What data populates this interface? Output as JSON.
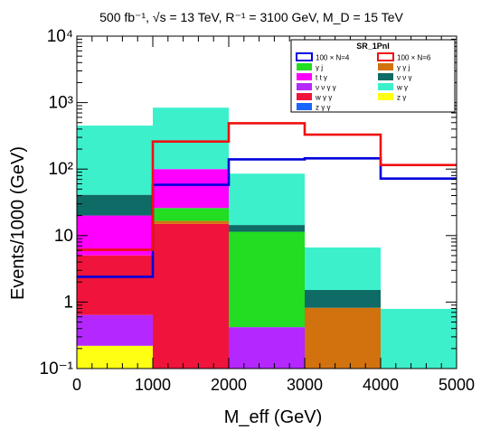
{
  "chart_data": {
    "type": "bar",
    "title": "500 fb⁻¹, √s = 13 TeV, R⁻¹ = 3100 GeV, M_D = 15 TeV",
    "xlabel": "M_eff (GeV)",
    "ylabel": "Events/1000 (GeV)",
    "x_bin_edges": [
      0,
      1000,
      2000,
      3000,
      4000,
      5000
    ],
    "x_ticks": [
      "0",
      "1000",
      "2000",
      "3000",
      "4000",
      "5000"
    ],
    "y_scale": "log",
    "ylim": [
      0.1,
      10000
    ],
    "y_ticks": [
      "10⁻¹",
      "1",
      "10",
      "10²",
      "10³",
      "10⁴"
    ],
    "legend": {
      "title": "SR_1PnI",
      "placement": "top-right",
      "entries": [
        {
          "label": "100 × N=4",
          "color": "#0000dd",
          "style": "line"
        },
        {
          "label": "100 × N=6",
          "color": "#ee1111",
          "style": "line"
        },
        {
          "label": "γ j",
          "color": "#22dd22",
          "style": "fill"
        },
        {
          "label": "γ γ j",
          "color": "#d2720e",
          "style": "fill"
        },
        {
          "label": "t t γ",
          "color": "#ff00ff",
          "style": "fill"
        },
        {
          "label": "ν ν γ",
          "color": "#0f6b66",
          "style": "fill"
        },
        {
          "label": "ν ν γ γ",
          "color": "#b428ff",
          "style": "fill"
        },
        {
          "label": "w γ",
          "color": "#3cf0cc",
          "style": "fill"
        },
        {
          "label": "w γ γ",
          "color": "#f0143c",
          "style": "fill"
        },
        {
          "label": "z γ",
          "color": "#ffff14",
          "style": "fill"
        },
        {
          "label": "z γ γ",
          "color": "#1a64ff",
          "style": "fill"
        }
      ]
    },
    "stacked_series": [
      {
        "name": "z γ",
        "color": "#ffff14",
        "values": [
          0.22,
          0,
          0,
          0,
          0
        ]
      },
      {
        "name": "ν ν γ γ",
        "color": "#b428ff",
        "values": [
          0.42,
          0,
          0.42,
          0,
          0
        ]
      },
      {
        "name": "w γ γ",
        "color": "#f0143c",
        "values": [
          4.4,
          15.0,
          0,
          0,
          0
        ]
      },
      {
        "name": "γ γ j",
        "color": "#d2720e",
        "values": [
          0,
          1.6,
          0,
          0.82,
          0
        ]
      },
      {
        "name": "γ j",
        "color": "#22dd22",
        "values": [
          0,
          9.4,
          11.0,
          0,
          0
        ]
      },
      {
        "name": "t t γ",
        "color": "#ff00ff",
        "values": [
          15.0,
          74,
          0,
          0,
          0.09
        ]
      },
      {
        "name": "ν ν γ",
        "color": "#0f6b66",
        "values": [
          21,
          0,
          3.0,
          0.7,
          0
        ]
      },
      {
        "name": "w γ",
        "color": "#3cf0cc",
        "values": [
          410,
          740,
          71,
          5.1,
          0.7
        ]
      }
    ],
    "signal_series": [
      {
        "name": "100 × N=4",
        "color": "#0000dd",
        "values": [
          2.4,
          58,
          140,
          145,
          72
        ]
      },
      {
        "name": "100 × N=6",
        "color": "#ee1111",
        "values": [
          6.1,
          260,
          490,
          330,
          115
        ]
      }
    ]
  }
}
